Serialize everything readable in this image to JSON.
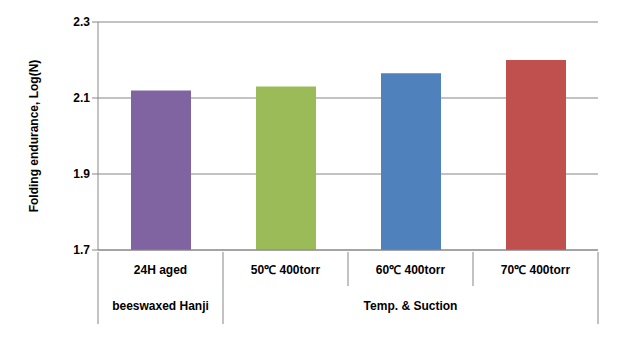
{
  "chart_data": {
    "type": "bar",
    "y_label": "Folding endurance, Log(N)",
    "categories": [
      "24H aged",
      "50℃ 400torr",
      "60℃ 400torr",
      "70℃ 400torr"
    ],
    "groups": [
      "beeswaxed Hanji",
      "Temp. & Suction",
      "Temp. & Suction",
      "Temp. & Suction"
    ],
    "values": [
      2.12,
      2.13,
      2.165,
      2.2
    ],
    "colors": [
      "#8064a2",
      "#9bbb59",
      "#4f81bd",
      "#c0504d"
    ],
    "ylim": [
      1.7,
      2.3
    ],
    "yticks": [
      1.7,
      1.9,
      2.1,
      2.3
    ],
    "grid": true
  }
}
